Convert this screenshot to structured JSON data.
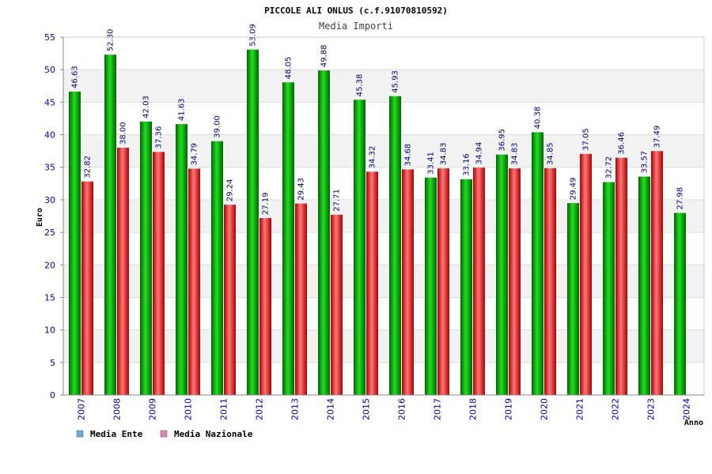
{
  "chart_data": {
    "type": "bar",
    "title": "PICCOLE ALI ONLUS (c.f.91070810592)",
    "subtitle": "Media Importi",
    "xlabel": "Anno",
    "ylabel": "Euro",
    "ylim": [
      0,
      55
    ],
    "yticks": [
      0,
      5,
      10,
      15,
      20,
      25,
      30,
      35,
      40,
      45,
      50,
      55
    ],
    "grid": true,
    "legend_position": "bottom-left",
    "categories": [
      "2007",
      "2008",
      "2009",
      "2010",
      "2011",
      "2012",
      "2013",
      "2014",
      "2015",
      "2016",
      "2017",
      "2018",
      "2019",
      "2020",
      "2021",
      "2022",
      "2023",
      "2024"
    ],
    "series": [
      {
        "name": "Media Ente",
        "color": "#00aa00",
        "legend_color": "#6fa8dc",
        "values": [
          46.63,
          52.3,
          42.03,
          41.63,
          39.0,
          53.09,
          48.05,
          49.88,
          45.38,
          45.93,
          33.41,
          33.16,
          36.95,
          40.38,
          29.49,
          32.72,
          33.57,
          27.98
        ],
        "labels": [
          "46.63",
          "52.30",
          "42.03",
          "41.63",
          "39.00",
          "53.09",
          "48.05",
          "49.88",
          "45.38",
          "45.93",
          "33.41",
          "33.16",
          "36.95",
          "40.38",
          "29.49",
          "32.72",
          "33.57",
          "27.98"
        ]
      },
      {
        "name": "Media Nazionale",
        "color": "#dd1111",
        "legend_color": "#dd88bb",
        "values": [
          32.82,
          38.0,
          37.36,
          34.79,
          29.24,
          27.19,
          29.43,
          27.71,
          34.32,
          34.68,
          34.83,
          34.94,
          34.83,
          34.85,
          37.05,
          36.46,
          37.49,
          null
        ],
        "labels": [
          "32.82",
          "38.00",
          "37.36",
          "34.79",
          "29.24",
          "27.19",
          "29.43",
          "27.71",
          "34.32",
          "34.68",
          "34.83",
          "34.94",
          "34.83",
          "34.85",
          "37.05",
          "36.46",
          "37.49",
          null
        ]
      }
    ]
  }
}
